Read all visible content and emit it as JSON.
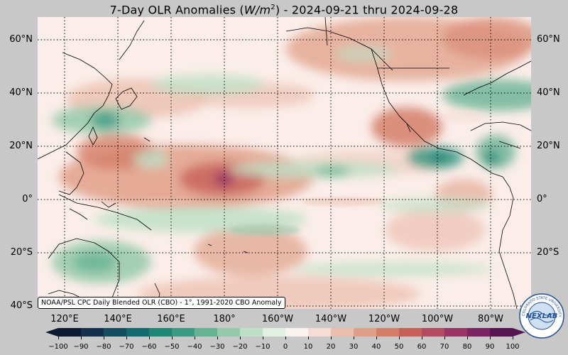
{
  "title": {
    "prefix": "7-Day OLR Anomalies (",
    "unit_var": "W/m",
    "unit_exp": "2",
    "suffix": ") - 2024-09-21 thru 2024-09-28"
  },
  "lat_labels": [
    "60°N",
    "40°N",
    "20°N",
    "0°",
    "20°S",
    "40°S"
  ],
  "lon_labels": [
    "120°E",
    "140°E",
    "160°E",
    "180°",
    "160°W",
    "140°W",
    "120°W",
    "100°W",
    "80°W"
  ],
  "source_note": "NOAA/PSL CPC Daily Blended OLR (CBO) - 1°, 1991-2020 CBO Anomaly",
  "logo_text": {
    "main": "NEXLAB",
    "ring": "COLORADO STATE UNIVERSITY"
  },
  "colorbar": {
    "ticks": [
      "−100",
      "−90",
      "−80",
      "−70",
      "−60",
      "−50",
      "−40",
      "−30",
      "−20",
      "−10",
      "0",
      "10",
      "20",
      "30",
      "40",
      "50",
      "60",
      "70",
      "80",
      "90",
      "100"
    ],
    "min": -100,
    "max": 100,
    "step": 10,
    "colors": [
      "#0d1a33",
      "#14304d",
      "#144d5e",
      "#126a6c",
      "#1f8575",
      "#3b9a82",
      "#67b293",
      "#94c9aa",
      "#bde0c6",
      "#e2f0e4",
      "#faf3f0",
      "#f5ddd4",
      "#ebbfae",
      "#e09f88",
      "#d47e68",
      "#c8605a",
      "#b44a5f",
      "#983566",
      "#7a2462",
      "#561550"
    ]
  },
  "map": {
    "type": "filled-contour",
    "region": "Pacific basin",
    "lon_range": [
      110,
      290
    ],
    "lat_range": [
      -40,
      68
    ]
  }
}
